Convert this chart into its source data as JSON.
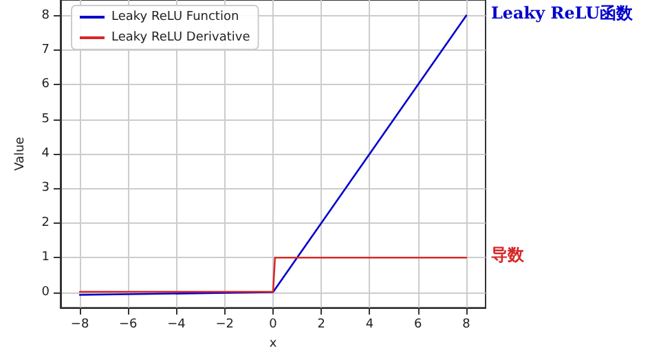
{
  "chart_data": {
    "type": "line",
    "xlabel": "x",
    "ylabel": "Value",
    "series": [
      {
        "name": "Leaky ReLU Function",
        "color": "#0000cc",
        "x": [
          -8,
          0,
          8
        ],
        "values": [
          -0.08,
          0,
          8
        ]
      },
      {
        "name": "Leaky ReLU Derivative",
        "color": "#d62728",
        "x": [
          -8,
          0,
          0.08,
          8
        ],
        "values": [
          0.01,
          0.01,
          1,
          1
        ]
      }
    ],
    "annotations": [
      {
        "text": "Leaky ReLU函数",
        "x": 8,
        "y": 8
      },
      {
        "text": "导数",
        "x": 8,
        "y": 1
      }
    ],
    "xlim": [
      -8.8,
      8.8
    ],
    "xticks": [
      -8,
      -6,
      -4,
      -2,
      0,
      2,
      4,
      6,
      8
    ],
    "ylim": [
      -0.45,
      8.45
    ],
    "yticks": [
      0,
      1,
      2,
      3,
      4,
      5,
      6,
      7,
      8
    ],
    "grid": true,
    "legend": "top left",
    "marker": "none",
    "line_style": "solid"
  }
}
